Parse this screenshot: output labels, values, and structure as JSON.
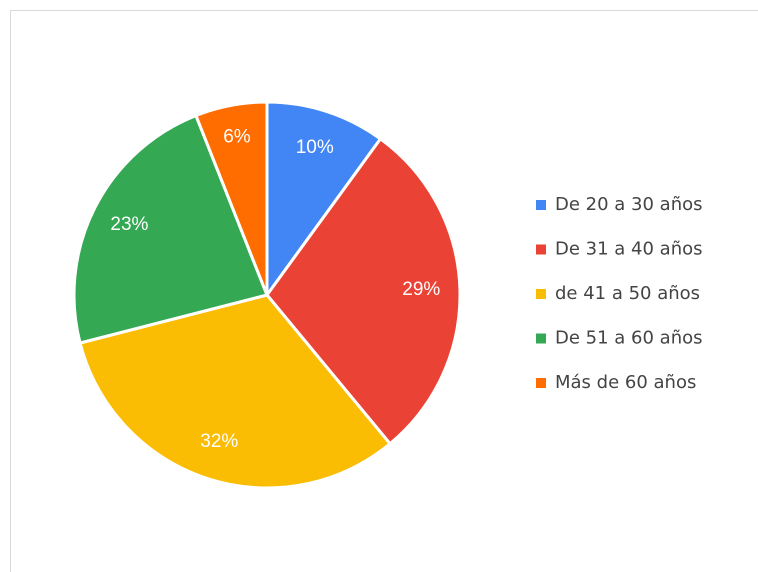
{
  "chart_data": {
    "type": "pie",
    "categories": [
      "De 20 a 30 años",
      "De 31 a 40 años",
      "de 41 a 50 años",
      "De 51 a 60 años",
      "Más de 60 años"
    ],
    "values": [
      10,
      29,
      32,
      23,
      6
    ],
    "value_labels": [
      "10%",
      "29%",
      "32%",
      "23%",
      "6%"
    ],
    "colors": [
      "#4285f4",
      "#ea4335",
      "#fbbc04",
      "#34a853",
      "#ff6d01"
    ],
    "legend": "right"
  }
}
